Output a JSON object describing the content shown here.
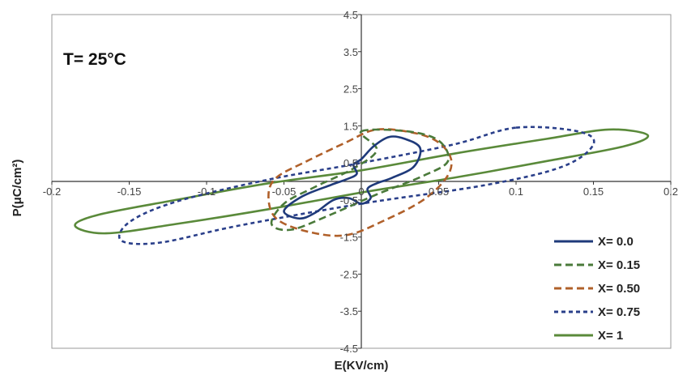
{
  "chart_data": {
    "type": "line",
    "title": "",
    "annotation": "T= 25°C",
    "xlabel": "E(KV/cm)",
    "ylabel": "P(μC/cm²)",
    "xlim": [
      -0.2,
      0.2
    ],
    "ylim": [
      -4.5,
      4.5
    ],
    "x_ticks": [
      -0.2,
      -0.15,
      -0.1,
      -0.05,
      0,
      0.05,
      0.1,
      0.15,
      0.2
    ],
    "x_tick_labels": [
      "-0.2",
      "-0.15",
      "-0.1",
      "-0.05",
      "0",
      "0.05",
      "0.1",
      "0.15",
      "0.2"
    ],
    "y_ticks": [
      4.5,
      3.5,
      2.5,
      1.5,
      0.5,
      -0.5,
      -1.5,
      -2.5,
      -3.5,
      -4.5
    ],
    "y_tick_labels": [
      "4.5",
      "3.5",
      "2.5",
      "1.5",
      "0.5",
      "-0.5",
      "-1.5",
      "-2.5",
      "-3.5",
      "-4.5"
    ],
    "grid": false,
    "legend_position": "bottom-right",
    "series": [
      {
        "name": "X= 0.0",
        "color": "#1f3a7a",
        "dash": "solid",
        "points": [
          [
            0.018,
            1.2
          ],
          [
            0.028,
            1.15
          ],
          [
            0.038,
            0.9
          ],
          [
            0.034,
            0.4
          ],
          [
            0.02,
            0.1
          ],
          [
            0.01,
            -0.05
          ],
          [
            0.004,
            -0.2
          ],
          [
            0.006,
            -0.45
          ],
          [
            0.0,
            -0.6
          ],
          [
            -0.008,
            -0.45
          ],
          [
            -0.018,
            -0.5
          ],
          [
            -0.03,
            -0.85
          ],
          [
            -0.04,
            -1.0
          ],
          [
            -0.05,
            -0.8
          ],
          [
            -0.038,
            -0.4
          ],
          [
            -0.02,
            -0.1
          ],
          [
            -0.01,
            0.05
          ],
          [
            -0.003,
            0.2
          ],
          [
            -0.005,
            0.45
          ],
          [
            0.0,
            0.6
          ],
          [
            0.008,
            0.95
          ],
          [
            0.018,
            1.2
          ]
        ]
      },
      {
        "name": "X= 0.15",
        "color": "#4a7a3a",
        "dash": "long",
        "points": [
          [
            0.0,
            1.35
          ],
          [
            0.03,
            1.35
          ],
          [
            0.05,
            1.1
          ],
          [
            0.056,
            0.55
          ],
          [
            0.04,
            0.15
          ],
          [
            0.01,
            -0.35
          ],
          [
            -0.02,
            -0.9
          ],
          [
            -0.045,
            -1.3
          ],
          [
            -0.058,
            -1.15
          ],
          [
            -0.05,
            -0.6
          ],
          [
            -0.03,
            -0.15
          ],
          [
            -0.005,
            0.35
          ],
          [
            0.01,
            0.85
          ],
          [
            0.0,
            1.35
          ]
        ]
      },
      {
        "name": "X= 0.50",
        "color": "#b0602a",
        "dash": "long",
        "points": [
          [
            0.01,
            1.4
          ],
          [
            0.035,
            1.3
          ],
          [
            0.05,
            1.05
          ],
          [
            0.058,
            0.6
          ],
          [
            0.055,
            0.1
          ],
          [
            0.04,
            -0.5
          ],
          [
            0.015,
            -1.05
          ],
          [
            -0.01,
            -1.45
          ],
          [
            -0.035,
            -1.35
          ],
          [
            -0.055,
            -1.0
          ],
          [
            -0.06,
            -0.4
          ],
          [
            -0.055,
            0.1
          ],
          [
            -0.035,
            0.55
          ],
          [
            -0.01,
            1.05
          ],
          [
            0.01,
            1.4
          ]
        ]
      },
      {
        "name": "X= 0.75",
        "color": "#2a3f8a",
        "dash": "short",
        "points": [
          [
            0.1,
            1.45
          ],
          [
            0.14,
            1.35
          ],
          [
            0.15,
            1.0
          ],
          [
            0.13,
            0.4
          ],
          [
            0.08,
            -0.1
          ],
          [
            0.0,
            -0.6
          ],
          [
            -0.08,
            -1.2
          ],
          [
            -0.13,
            -1.65
          ],
          [
            -0.155,
            -1.6
          ],
          [
            -0.15,
            -1.1
          ],
          [
            -0.12,
            -0.55
          ],
          [
            -0.06,
            0.05
          ],
          [
            0.0,
            0.5
          ],
          [
            0.06,
            1.0
          ],
          [
            0.1,
            1.45
          ]
        ]
      },
      {
        "name": "X= 1",
        "color": "#5a8a3a",
        "dash": "solid",
        "points": [
          [
            0.16,
            1.4
          ],
          [
            0.185,
            1.25
          ],
          [
            0.17,
            0.95
          ],
          [
            0.12,
            0.55
          ],
          [
            0.06,
            0.1
          ],
          [
            0.0,
            -0.3
          ],
          [
            -0.06,
            -0.75
          ],
          [
            -0.12,
            -1.15
          ],
          [
            -0.165,
            -1.4
          ],
          [
            -0.185,
            -1.2
          ],
          [
            -0.17,
            -0.9
          ],
          [
            -0.12,
            -0.5
          ],
          [
            -0.06,
            -0.05
          ],
          [
            0.0,
            0.3
          ],
          [
            0.06,
            0.75
          ],
          [
            0.12,
            1.15
          ],
          [
            0.16,
            1.4
          ]
        ]
      }
    ]
  }
}
